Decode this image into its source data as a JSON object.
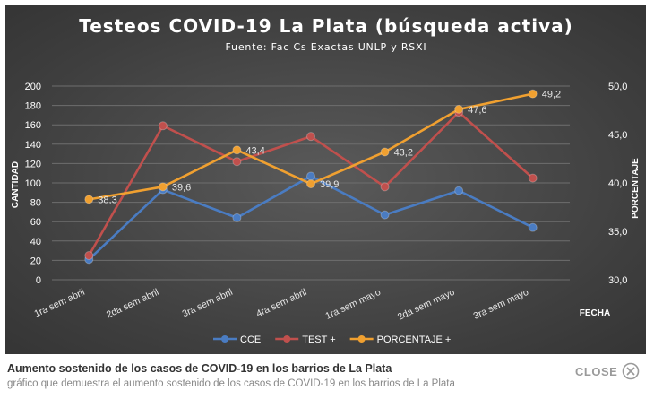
{
  "chart_data": {
    "type": "line",
    "title": "Testeos COVID-19 La Plata (búsqueda activa)",
    "subtitle": "Fuente: Fac Cs Exactas UNLP y RSXI",
    "xlabel": "FECHA",
    "ylabel": "CANTIDAD",
    "y2label": "PORCENTAJE",
    "categories": [
      "1ra sem abril",
      "2da sem abril",
      "3ra sem abril",
      "4ra sem abril",
      "1ra sem mayo",
      "2da sem mayo",
      "3ra sem mayo"
    ],
    "ylim": [
      0,
      200
    ],
    "y2lim": [
      30,
      50
    ],
    "yticks": [
      "0",
      "20",
      "40",
      "60",
      "80",
      "100",
      "120",
      "140",
      "160",
      "180",
      "200"
    ],
    "y2ticks": [
      "30,0",
      "35,0",
      "40,0",
      "45,0",
      "50,0"
    ],
    "grid": true,
    "legend_position": "bottom",
    "series": [
      {
        "name": "CCE",
        "axis": "left",
        "color": "#4a7cc2",
        "values": [
          21,
          93,
          64,
          107,
          67,
          92,
          54
        ]
      },
      {
        "name": "TEST +",
        "axis": "left",
        "color": "#c0504d",
        "values": [
          25,
          159,
          122,
          148,
          96,
          173,
          105
        ]
      },
      {
        "name": "PORCENTAJE +",
        "axis": "right",
        "color": "#f0a030",
        "values": [
          38.3,
          39.6,
          43.4,
          39.9,
          43.2,
          47.6,
          49.2
        ],
        "labels": [
          "38,3",
          "39,6",
          "43,4",
          "39,9",
          "43,2",
          "47,6",
          "49,2"
        ]
      }
    ]
  },
  "caption": {
    "title": "Aumento sostenido de los casos de COVID-19 en los barrios de La Plata",
    "subtitle": "gráfico que demuestra el aumento sostenido de los casos de COVID-19 en los barrios de La Plata"
  },
  "close": {
    "label": "CLOSE",
    "icon": "close-icon"
  }
}
